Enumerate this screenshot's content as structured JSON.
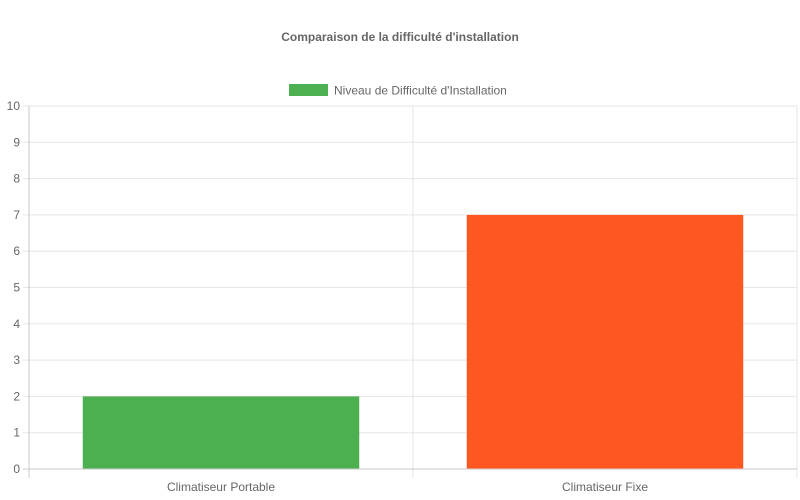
{
  "chart_data": {
    "type": "bar",
    "title": "Comparaison de la difficulté d'installation",
    "categories": [
      "Climatiseur Portable",
      "Climatiseur Fixe"
    ],
    "series": [
      {
        "name": "Niveau de Difficulté d'Installation",
        "values": [
          2,
          7
        ],
        "colors": [
          "#4caf50",
          "#ff5722"
        ]
      }
    ],
    "xlabel": "",
    "ylabel": "",
    "ylim": [
      0,
      10
    ],
    "yticks": [
      "0",
      "1",
      "2",
      "3",
      "4",
      "5",
      "6",
      "7",
      "8",
      "9",
      "10"
    ],
    "grid": true,
    "legend_position": "top",
    "legend_color": "#4caf50"
  }
}
